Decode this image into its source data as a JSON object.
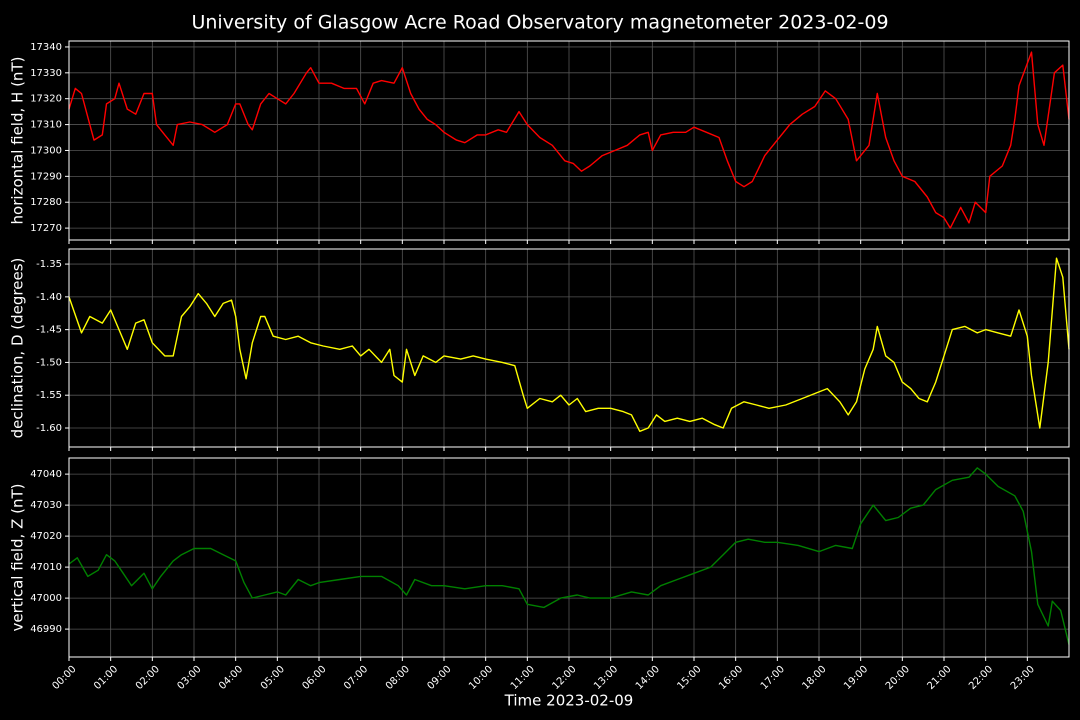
{
  "title": "University of Glasgow Acre Road Observatory magnetometer 2023-02-09",
  "chart_data": [
    {
      "type": "line",
      "ylabel": "horizontal field, H (nT)",
      "color": "#ff0000",
      "grid": true,
      "xlim": [
        0,
        24
      ],
      "ylim": [
        17265.4,
        17342.3
      ],
      "yticks": [
        17270,
        17280,
        17290,
        17300,
        17310,
        17320,
        17330,
        17340
      ],
      "x": [
        0,
        0.15,
        0.3,
        0.5,
        0.6,
        0.8,
        0.9,
        1.1,
        1.2,
        1.4,
        1.6,
        1.8,
        2.0,
        2.1,
        2.3,
        2.5,
        2.6,
        2.9,
        3.2,
        3.5,
        3.8,
        4.0,
        4.1,
        4.3,
        4.4,
        4.6,
        4.8,
        5.0,
        5.2,
        5.4,
        5.7,
        5.8,
        6.0,
        6.3,
        6.6,
        6.9,
        7.1,
        7.3,
        7.5,
        7.8,
        8.0,
        8.2,
        8.4,
        8.6,
        8.8,
        9.0,
        9.3,
        9.5,
        9.8,
        10.0,
        10.3,
        10.5,
        10.8,
        11.0,
        11.3,
        11.6,
        11.9,
        12.1,
        12.3,
        12.5,
        12.8,
        13.1,
        13.4,
        13.7,
        13.9,
        14.0,
        14.2,
        14.5,
        14.8,
        15.0,
        15.3,
        15.6,
        15.8,
        16.0,
        16.2,
        16.4,
        16.7,
        17.0,
        17.3,
        17.6,
        17.9,
        18.15,
        18.4,
        18.7,
        18.9,
        19.2,
        19.4,
        19.6,
        19.8,
        20.0,
        20.3,
        20.6,
        20.8,
        21.0,
        21.15,
        21.4,
        21.6,
        21.75,
        22.0,
        22.1,
        22.4,
        22.6,
        22.7,
        22.8,
        23.1,
        23.25,
        23.4,
        23.65,
        23.85,
        24
      ],
      "values": [
        17316,
        17324,
        17322,
        17310,
        17304,
        17306,
        17318,
        17320,
        17326,
        17316,
        17314,
        17322,
        17322,
        17310,
        17306,
        17302,
        17310,
        17311,
        17310,
        17307,
        17310,
        17318,
        17318,
        17310,
        17308,
        17318,
        17322,
        17320,
        17318,
        17322,
        17330,
        17332,
        17326,
        17326,
        17324,
        17324,
        17318,
        17326,
        17327,
        17326,
        17332,
        17322,
        17316,
        17312,
        17310,
        17307,
        17304,
        17303,
        17306,
        17306,
        17308,
        17307,
        17315,
        17310,
        17305,
        17302,
        17296,
        17295,
        17292,
        17294,
        17298,
        17300,
        17302,
        17306,
        17307,
        17300,
        17306,
        17307,
        17307,
        17309,
        17307,
        17305,
        17296,
        17288,
        17286,
        17288,
        17298,
        17304,
        17310,
        17314,
        17317,
        17323,
        17320,
        17312,
        17296,
        17302,
        17322,
        17305,
        17296,
        17290,
        17288,
        17282,
        17276,
        17274,
        17270,
        17278,
        17272,
        17280,
        17276,
        17290,
        17294,
        17302,
        17312,
        17325,
        17338,
        17310,
        17302,
        17330,
        17333,
        17312
      ]
    },
    {
      "type": "line",
      "ylabel": "declination, D (degrees)",
      "color": "#ffff00",
      "grid": true,
      "xlim": [
        0,
        24
      ],
      "ylim": [
        -1.629,
        -1.327
      ],
      "yticks": [
        -1.35,
        {
          "value": -1.4,
          "label": "-1.40"
        },
        -1.45,
        {
          "value": -1.5,
          "label": "-1.50"
        },
        -1.55,
        {
          "value": -1.6,
          "label": "-1.60"
        }
      ],
      "x": [
        0,
        0.3,
        0.5,
        0.8,
        1.0,
        1.2,
        1.4,
        1.6,
        1.8,
        2.0,
        2.3,
        2.5,
        2.7,
        2.9,
        3.1,
        3.3,
        3.5,
        3.7,
        3.9,
        4.0,
        4.1,
        4.25,
        4.4,
        4.6,
        4.7,
        4.9,
        5.2,
        5.5,
        5.8,
        6.1,
        6.5,
        6.8,
        7.0,
        7.2,
        7.5,
        7.7,
        7.8,
        8.0,
        8.1,
        8.3,
        8.5,
        8.8,
        9.0,
        9.4,
        9.7,
        10.0,
        10.4,
        10.7,
        10.9,
        11.0,
        11.3,
        11.6,
        11.8,
        12.0,
        12.2,
        12.4,
        12.7,
        13.0,
        13.3,
        13.5,
        13.7,
        13.9,
        14.1,
        14.3,
        14.6,
        14.9,
        15.2,
        15.5,
        15.7,
        15.9,
        16.2,
        16.5,
        16.8,
        17.2,
        17.6,
        18.0,
        18.2,
        18.5,
        18.7,
        18.9,
        19.1,
        19.3,
        19.4,
        19.6,
        19.8,
        20.0,
        20.2,
        20.4,
        20.6,
        20.8,
        21.0,
        21.2,
        21.5,
        21.8,
        22.0,
        22.3,
        22.6,
        22.8,
        23.0,
        23.1,
        23.3,
        23.5,
        23.7,
        23.85,
        24
      ],
      "values": [
        -1.4,
        -1.455,
        -1.43,
        -1.44,
        -1.42,
        -1.45,
        -1.48,
        -1.44,
        -1.435,
        -1.47,
        -1.49,
        -1.49,
        -1.43,
        -1.415,
        -1.395,
        -1.41,
        -1.43,
        -1.41,
        -1.405,
        -1.43,
        -1.48,
        -1.525,
        -1.47,
        -1.43,
        -1.43,
        -1.46,
        -1.465,
        -1.46,
        -1.47,
        -1.475,
        -1.48,
        -1.475,
        -1.49,
        -1.48,
        -1.5,
        -1.48,
        -1.52,
        -1.53,
        -1.48,
        -1.52,
        -1.49,
        -1.5,
        -1.49,
        -1.495,
        -1.49,
        -1.495,
        -1.5,
        -1.505,
        -1.55,
        -1.57,
        -1.555,
        -1.56,
        -1.55,
        -1.565,
        -1.555,
        -1.575,
        -1.57,
        -1.57,
        -1.575,
        -1.58,
        -1.605,
        -1.6,
        -1.58,
        -1.59,
        -1.585,
        -1.59,
        -1.585,
        -1.595,
        -1.6,
        -1.57,
        -1.56,
        -1.565,
        -1.57,
        -1.565,
        -1.555,
        -1.545,
        -1.54,
        -1.56,
        -1.58,
        -1.56,
        -1.51,
        -1.48,
        -1.445,
        -1.49,
        -1.5,
        -1.53,
        -1.54,
        -1.555,
        -1.56,
        -1.53,
        -1.49,
        -1.45,
        -1.445,
        -1.455,
        -1.45,
        -1.455,
        -1.46,
        -1.42,
        -1.46,
        -1.52,
        -1.6,
        -1.5,
        -1.341,
        -1.37,
        -1.48
      ]
    },
    {
      "type": "line",
      "ylabel": "vertical field, Z (nT)",
      "xlabel": "Time 2023-02-09",
      "color": "#008000",
      "grid": true,
      "xlim": [
        0,
        24
      ],
      "ylim": [
        46981.0,
        47045.2
      ],
      "yticks": [
        46990,
        47000,
        47010,
        47020,
        47030,
        47040
      ],
      "xticks": [
        {
          "value": 0,
          "label": "00:00"
        },
        {
          "value": 1,
          "label": "01:00"
        },
        {
          "value": 2,
          "label": "02:00"
        },
        {
          "value": 3,
          "label": "03:00"
        },
        {
          "value": 4,
          "label": "04:00"
        },
        {
          "value": 5,
          "label": "05:00"
        },
        {
          "value": 6,
          "label": "06:00"
        },
        {
          "value": 7,
          "label": "07:00"
        },
        {
          "value": 8,
          "label": "08:00"
        },
        {
          "value": 9,
          "label": "09:00"
        },
        {
          "value": 10,
          "label": "10:00"
        },
        {
          "value": 11,
          "label": "11:00"
        },
        {
          "value": 12,
          "label": "12:00"
        },
        {
          "value": 13,
          "label": "13:00"
        },
        {
          "value": 14,
          "label": "14:00"
        },
        {
          "value": 15,
          "label": "15:00"
        },
        {
          "value": 16,
          "label": "16:00"
        },
        {
          "value": 17,
          "label": "17:00"
        },
        {
          "value": 18,
          "label": "18:00"
        },
        {
          "value": 19,
          "label": "19:00"
        },
        {
          "value": 20,
          "label": "20:00"
        },
        {
          "value": 21,
          "label": "21:00"
        },
        {
          "value": 22,
          "label": "22:00"
        },
        {
          "value": 23,
          "label": "23:00"
        }
      ],
      "x": [
        0,
        0.2,
        0.45,
        0.7,
        0.9,
        1.1,
        1.3,
        1.5,
        1.8,
        2.0,
        2.2,
        2.5,
        2.7,
        3.0,
        3.4,
        3.7,
        4.0,
        4.2,
        4.4,
        4.7,
        5.0,
        5.2,
        5.5,
        5.8,
        6.0,
        6.5,
        7.0,
        7.5,
        7.9,
        8.1,
        8.3,
        8.7,
        9.0,
        9.5,
        10.0,
        10.4,
        10.8,
        11.0,
        11.4,
        11.8,
        12.2,
        12.5,
        13.0,
        13.5,
        13.9,
        14.2,
        14.6,
        15.0,
        15.4,
        15.7,
        16.0,
        16.3,
        16.7,
        17.0,
        17.5,
        18.0,
        18.4,
        18.8,
        19.0,
        19.3,
        19.6,
        19.9,
        20.2,
        20.5,
        20.8,
        21.2,
        21.6,
        21.8,
        22.0,
        22.3,
        22.7,
        22.9,
        23.1,
        23.25,
        23.5,
        23.6,
        23.8,
        24
      ],
      "values": [
        47011,
        47013,
        47007,
        47009,
        47014,
        47012,
        47008,
        47004,
        47008,
        47003,
        47007,
        47012,
        47014,
        47016,
        47016,
        47014,
        47012,
        47005,
        47000,
        47001,
        47002,
        47001,
        47006,
        47004,
        47005,
        47006,
        47007,
        47007,
        47004,
        47001,
        47006,
        47004,
        47004,
        47003,
        47004,
        47004,
        47003,
        46998,
        46997,
        47000,
        47001,
        47000,
        47000,
        47002,
        47001,
        47004,
        47006,
        47008,
        47010,
        47014,
        47018,
        47019,
        47018,
        47018,
        47017,
        47015,
        47017,
        47016,
        47024,
        47030,
        47025,
        47026,
        47029,
        47030,
        47035,
        47038,
        47039,
        47042,
        47040,
        47036,
        47033,
        47028,
        47015,
        46998,
        46991,
        46999,
        46996,
        46985
      ]
    }
  ]
}
